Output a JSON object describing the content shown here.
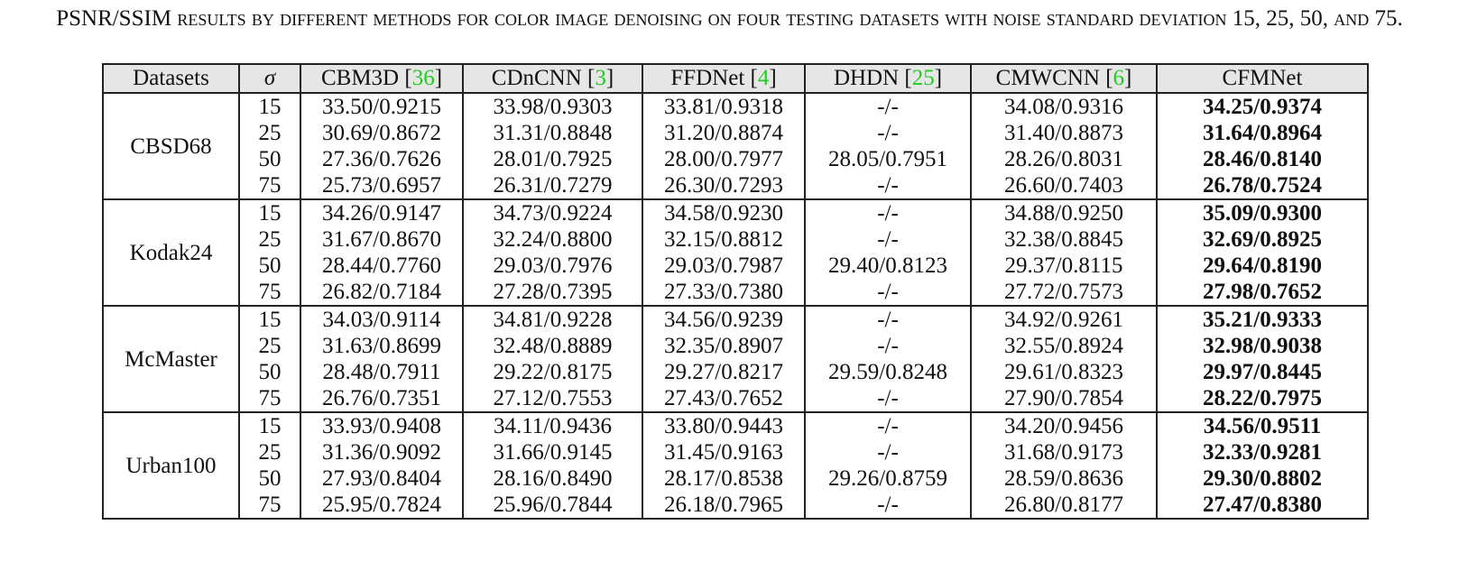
{
  "caption": {
    "lead": "PSNR/SSIM",
    "text": "results by different methods for color image denoising on four testing datasets with noise standard deviation",
    "values": "15, 25, 50,",
    "and": "and",
    "last": "75."
  },
  "table": {
    "headers": [
      {
        "label": "Datasets",
        "cite": ""
      },
      {
        "label": "σ",
        "cite": ""
      },
      {
        "label": "CBM3D [",
        "cite": "36",
        "close": "]"
      },
      {
        "label": "CDnCNN [",
        "cite": "3",
        "close": "]"
      },
      {
        "label": "FFDNet [",
        "cite": "4",
        "close": "]"
      },
      {
        "label": "DHDN [",
        "cite": "25",
        "close": "]"
      },
      {
        "label": "CMWCNN [",
        "cite": "6",
        "close": "]"
      },
      {
        "label": "CFMNet",
        "cite": ""
      }
    ],
    "groups": [
      {
        "dataset": "CBSD68",
        "rows": [
          {
            "sigma": "15",
            "values": [
              "33.50/0.9215",
              "33.98/0.9303",
              "33.81/0.9318",
              "-/-",
              "34.08/0.9316",
              "34.25/0.9374"
            ]
          },
          {
            "sigma": "25",
            "values": [
              "30.69/0.8672",
              "31.31/0.8848",
              "31.20/0.8874",
              "-/-",
              "31.40/0.8873",
              "31.64/0.8964"
            ]
          },
          {
            "sigma": "50",
            "values": [
              "27.36/0.7626",
              "28.01/0.7925",
              "28.00/0.7977",
              "28.05/0.7951",
              "28.26/0.8031",
              "28.46/0.8140"
            ]
          },
          {
            "sigma": "75",
            "values": [
              "25.73/0.6957",
              "26.31/0.7279",
              "26.30/0.7293",
              "-/-",
              "26.60/0.7403",
              "26.78/0.7524"
            ]
          }
        ]
      },
      {
        "dataset": "Kodak24",
        "rows": [
          {
            "sigma": "15",
            "values": [
              "34.26/0.9147",
              "34.73/0.9224",
              "34.58/0.9230",
              "-/-",
              "34.88/0.9250",
              "35.09/0.9300"
            ]
          },
          {
            "sigma": "25",
            "values": [
              "31.67/0.8670",
              "32.24/0.8800",
              "32.15/0.8812",
              "-/-",
              "32.38/0.8845",
              "32.69/0.8925"
            ]
          },
          {
            "sigma": "50",
            "values": [
              "28.44/0.7760",
              "29.03/0.7976",
              "29.03/0.7987",
              "29.40/0.8123",
              "29.37/0.8115",
              "29.64/0.8190"
            ]
          },
          {
            "sigma": "75",
            "values": [
              "26.82/0.7184",
              "27.28/0.7395",
              "27.33/0.7380",
              "-/-",
              "27.72/0.7573",
              "27.98/0.7652"
            ]
          }
        ]
      },
      {
        "dataset": "McMaster",
        "rows": [
          {
            "sigma": "15",
            "values": [
              "34.03/0.9114",
              "34.81/0.9228",
              "34.56/0.9239",
              "-/-",
              "34.92/0.9261",
              "35.21/0.9333"
            ]
          },
          {
            "sigma": "25",
            "values": [
              "31.63/0.8699",
              "32.48/0.8889",
              "32.35/0.8907",
              "-/-",
              "32.55/0.8924",
              "32.98/0.9038"
            ]
          },
          {
            "sigma": "50",
            "values": [
              "28.48/0.7911",
              "29.22/0.8175",
              "29.27/0.8217",
              "29.59/0.8248",
              "29.61/0.8323",
              "29.97/0.8445"
            ]
          },
          {
            "sigma": "75",
            "values": [
              "26.76/0.7351",
              "27.12/0.7553",
              "27.43/0.7652",
              "-/-",
              "27.90/0.7854",
              "28.22/0.7975"
            ]
          }
        ]
      },
      {
        "dataset": "Urban100",
        "rows": [
          {
            "sigma": "15",
            "values": [
              "33.93/0.9408",
              "34.11/0.9436",
              "33.80/0.9443",
              "-/-",
              "34.20/0.9456",
              "34.56/0.9511"
            ]
          },
          {
            "sigma": "25",
            "values": [
              "31.36/0.9092",
              "31.66/0.9145",
              "31.45/0.9163",
              "-/-",
              "31.68/0.9173",
              "32.33/0.9281"
            ]
          },
          {
            "sigma": "50",
            "values": [
              "27.93/0.8404",
              "28.16/0.8490",
              "28.17/0.8538",
              "29.26/0.8759",
              "28.59/0.8636",
              "29.30/0.8802"
            ]
          },
          {
            "sigma": "75",
            "values": [
              "25.95/0.7824",
              "25.96/0.7844",
              "26.18/0.7965",
              "-/-",
              "26.80/0.8177",
              "27.47/0.8380"
            ]
          }
        ]
      }
    ]
  }
}
